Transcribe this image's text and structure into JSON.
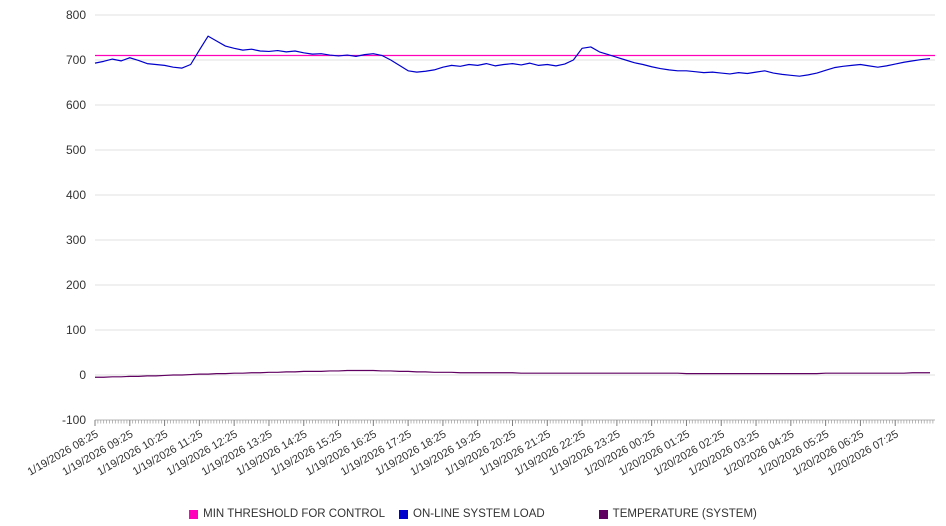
{
  "chart_data": {
    "type": "line",
    "title": "",
    "xlabel": "",
    "ylabel": "",
    "ylim": [
      -100,
      800
    ],
    "y_ticks": [
      800,
      700,
      600,
      500,
      400,
      300,
      200,
      100,
      0,
      -100
    ],
    "grid": "horizontal",
    "legend_position": "bottom",
    "points_per_hour": 4,
    "x_tick_labels": [
      "1/19/2026 08:25",
      "1/19/2026 09:25",
      "1/19/2026 10:25",
      "1/19/2026 11:25",
      "1/19/2026 12:25",
      "1/19/2026 13:25",
      "1/19/2026 14:25",
      "1/19/2026 15:25",
      "1/19/2026 16:25",
      "1/19/2026 17:25",
      "1/19/2026 18:25",
      "1/19/2026 19:25",
      "1/19/2026 20:25",
      "1/19/2026 21:25",
      "1/19/2026 22:25",
      "1/19/2026 23:25",
      "1/20/2026 00:25",
      "1/20/2026 01:25",
      "1/20/2026 02:25",
      "1/20/2026 03:25",
      "1/20/2026 04:25",
      "1/20/2026 05:25",
      "1/20/2026 06:25",
      "1/20/2026 07:25"
    ],
    "series": [
      {
        "name": "MIN THRESHOLD FOR CONTROL",
        "type": "constant",
        "color": "#ff00bb",
        "value": 710
      },
      {
        "name": "ON-LINE SYSTEM LOAD",
        "type": "line",
        "color": "#0000cc",
        "values": [
          693,
          697,
          702,
          698,
          705,
          699,
          692,
          690,
          688,
          684,
          682,
          690,
          722,
          753,
          742,
          731,
          726,
          722,
          724,
          720,
          719,
          721,
          718,
          720,
          716,
          713,
          714,
          711,
          709,
          711,
          708,
          712,
          714,
          710,
          700,
          688,
          676,
          673,
          675,
          678,
          684,
          688,
          686,
          690,
          688,
          692,
          687,
          690,
          692,
          689,
          693,
          688,
          690,
          687,
          691,
          700,
          726,
          729,
          718,
          712,
          706,
          700,
          694,
          690,
          685,
          681,
          678,
          676,
          676,
          674,
          672,
          673,
          671,
          669,
          672,
          670,
          673,
          676,
          671,
          668,
          666,
          664,
          667,
          671,
          677,
          683,
          686,
          688,
          690,
          687,
          684,
          687,
          691,
          695,
          698,
          701,
          703
        ]
      },
      {
        "name": "TEMPERATURE (SYSTEM)",
        "type": "line",
        "color": "#600060",
        "values": [
          -5,
          -5,
          -4,
          -4,
          -3,
          -3,
          -2,
          -2,
          -1,
          0,
          0,
          1,
          2,
          2,
          3,
          3,
          4,
          4,
          5,
          5,
          6,
          6,
          7,
          7,
          8,
          8,
          8,
          9,
          9,
          10,
          10,
          10,
          10,
          9,
          9,
          8,
          8,
          7,
          7,
          6,
          6,
          6,
          5,
          5,
          5,
          5,
          5,
          5,
          5,
          4,
          4,
          4,
          4,
          4,
          4,
          4,
          4,
          4,
          4,
          4,
          4,
          4,
          4,
          4,
          4,
          4,
          4,
          4,
          3,
          3,
          3,
          3,
          3,
          3,
          3,
          3,
          3,
          3,
          3,
          3,
          3,
          3,
          3,
          3,
          4,
          4,
          4,
          4,
          4,
          4,
          4,
          4,
          4,
          4,
          5,
          5,
          5
        ]
      }
    ]
  },
  "legend": {
    "items": [
      {
        "label": "MIN THRESHOLD FOR CONTROL",
        "color": "#ff00bb"
      },
      {
        "label": "ON-LINE SYSTEM LOAD",
        "color": "#0000cc"
      },
      {
        "label": "TEMPERATURE (SYSTEM)",
        "color": "#600060"
      }
    ]
  }
}
